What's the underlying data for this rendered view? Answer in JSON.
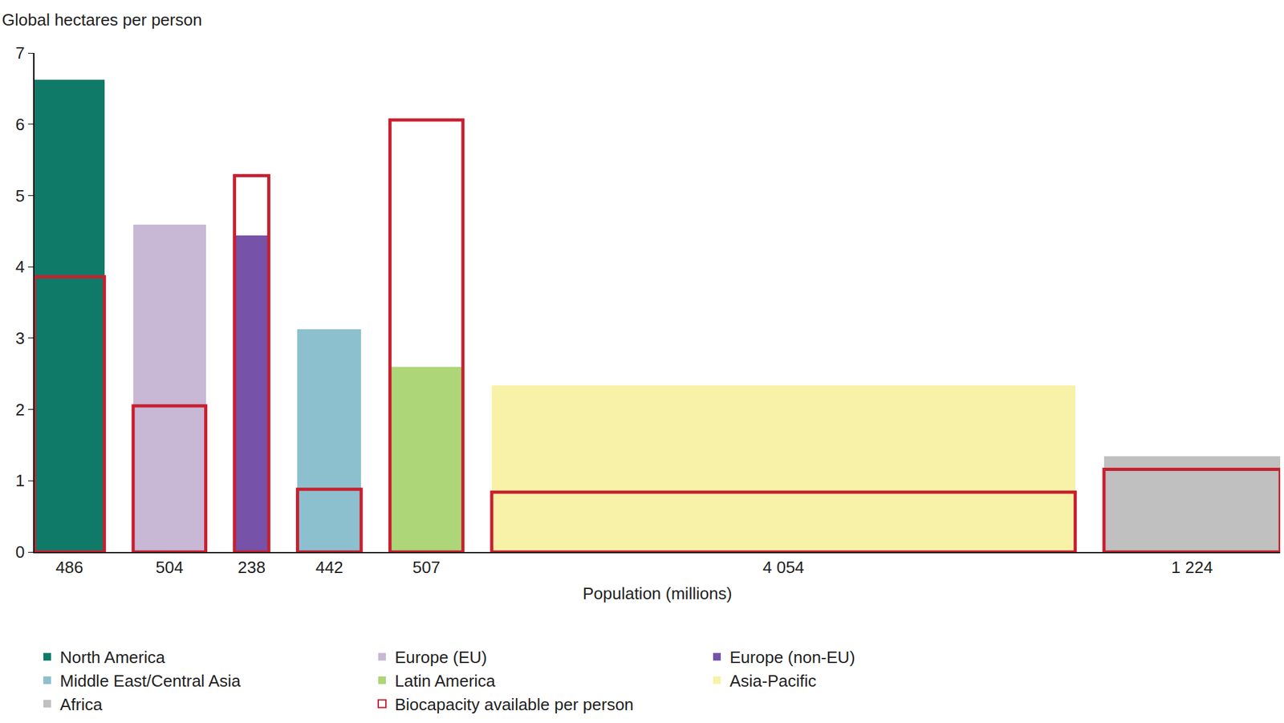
{
  "chart_data": {
    "type": "bar",
    "y_label": "Global hectares per person",
    "x_label": "Population (millions)",
    "categories": [
      "North America",
      "Europe (EU)",
      "Europe (non-EU)",
      "Middle East/Central Asia",
      "Latin America",
      "Asia-Pacific",
      "Africa"
    ],
    "populations": [
      486,
      504,
      238,
      442,
      507,
      {
        "value": 4054,
        "label": "4 054"
      },
      {
        "value": 1224,
        "label": "1 224"
      }
    ],
    "values": [
      6.62,
      4.59,
      4.44,
      3.12,
      2.6,
      2.34,
      1.34
    ],
    "colors": [
      "#0f7a68",
      "#c9b7d6",
      "#7652a8",
      "#8dc0cf",
      "#add679",
      "#f8f2a8",
      "#c0c0c0"
    ],
    "series": [
      {
        "name": "Biocapacity available per person",
        "color": "#c8202f",
        "marker": "outline",
        "values": [
          3.86,
          2.05,
          5.28,
          0.88,
          6.06,
          0.84,
          1.16
        ]
      }
    ],
    "ylim": [
      0,
      7
    ],
    "yticks": [
      0,
      1,
      2,
      3,
      4,
      5,
      6,
      7
    ],
    "grid": false,
    "legend": "bottom"
  }
}
